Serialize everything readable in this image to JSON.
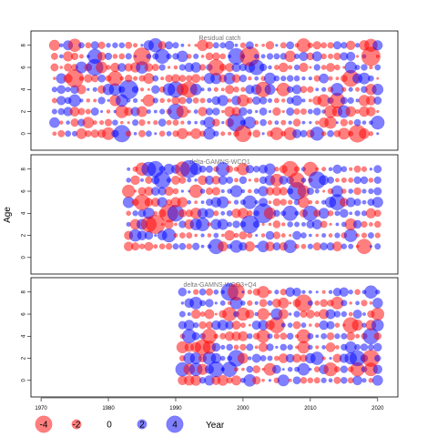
{
  "chart_data": {
    "type": "scatter",
    "y_axis_label": "Age",
    "x_axis_label": "Year",
    "x_range": [
      1968.5,
      2023
    ],
    "y_range": [
      -1.5,
      9.3
    ],
    "x_ticks": [
      "1970",
      "1980",
      "1990",
      "2000",
      "2010",
      "2020"
    ],
    "y_ticks": [
      "0",
      "2",
      "4",
      "6",
      "8"
    ],
    "colors": {
      "positive": "#0000ff",
      "negative": "#ff0000"
    },
    "panels": [
      {
        "title": "Residual catch",
        "year_start": 1972,
        "year_end": 2020,
        "ages": [
          0,
          1,
          2,
          3,
          4,
          5,
          6,
          7,
          8
        ],
        "seed": 11
      },
      {
        "title": "delta-GAMNS-WCQ1",
        "year_start": 1983,
        "year_end": 2020,
        "ages": [
          1,
          2,
          3,
          4,
          5,
          6,
          7,
          8
        ],
        "seed": 23
      },
      {
        "title": "delta-GAMNS-WCQ3+Q4",
        "year_start": 1991,
        "year_end": 2020,
        "ages": [
          0,
          1,
          2,
          3,
          4,
          5,
          6,
          7,
          8
        ],
        "seed": 37
      }
    ],
    "legend": {
      "values": [
        -4,
        -2,
        0,
        2,
        4
      ],
      "labels": [
        "-4",
        "-2",
        "0",
        "2",
        "4"
      ],
      "title": "Year"
    }
  }
}
